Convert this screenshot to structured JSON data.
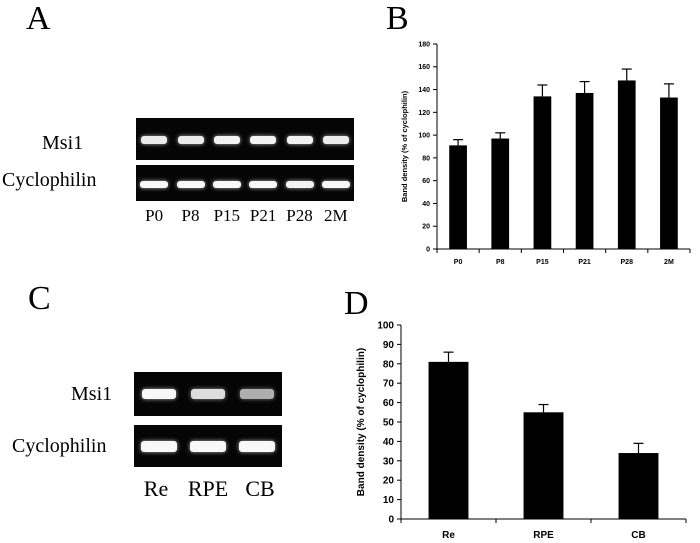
{
  "panels": {
    "A": {
      "letter": "A",
      "gel_rows": [
        "Msi1",
        "Cyclophilin"
      ],
      "lanes": [
        "P0",
        "P8",
        "P15",
        "P21",
        "P28",
        "2M"
      ]
    },
    "B": {
      "letter": "B"
    },
    "C": {
      "letter": "C",
      "gel_rows": [
        "Msi1",
        "Cyclophilin"
      ],
      "lanes": [
        "Re",
        "RPE",
        "CB"
      ]
    },
    "D": {
      "letter": "D"
    }
  },
  "chart_data": [
    {
      "panel": "B",
      "type": "bar",
      "categories": [
        "P0",
        "P8",
        "P15",
        "P21",
        "P28",
        "2M"
      ],
      "values": [
        91,
        97,
        134,
        137,
        148,
        133
      ],
      "errors": [
        5,
        5,
        10,
        10,
        10,
        12
      ],
      "ylabel": "Band density (% of cyclophilin)",
      "xlabel": "",
      "ylim": [
        0,
        180
      ],
      "yticks": [
        0,
        20,
        40,
        60,
        80,
        100,
        120,
        140,
        160,
        180
      ],
      "grid": false
    },
    {
      "panel": "D",
      "type": "bar",
      "categories": [
        "Re",
        "RPE",
        "CB"
      ],
      "values": [
        81,
        55,
        34
      ],
      "errors": [
        5,
        4,
        5
      ],
      "ylabel": "Band density (% of cyclophilin)",
      "xlabel": "",
      "ylim": [
        0,
        100
      ],
      "yticks": [
        0,
        10,
        20,
        30,
        40,
        50,
        60,
        70,
        80,
        90,
        100
      ],
      "grid": false
    }
  ],
  "band_intensity": {
    "A_msi1": [
      0.85,
      0.85,
      0.9,
      0.9,
      0.9,
      0.85
    ],
    "A_cyclophilin": [
      0.95,
      0.95,
      0.95,
      0.95,
      0.9,
      0.95
    ],
    "C_msi1": [
      0.95,
      0.75,
      0.4
    ],
    "C_cyclophilin": [
      0.95,
      0.95,
      0.95
    ]
  }
}
